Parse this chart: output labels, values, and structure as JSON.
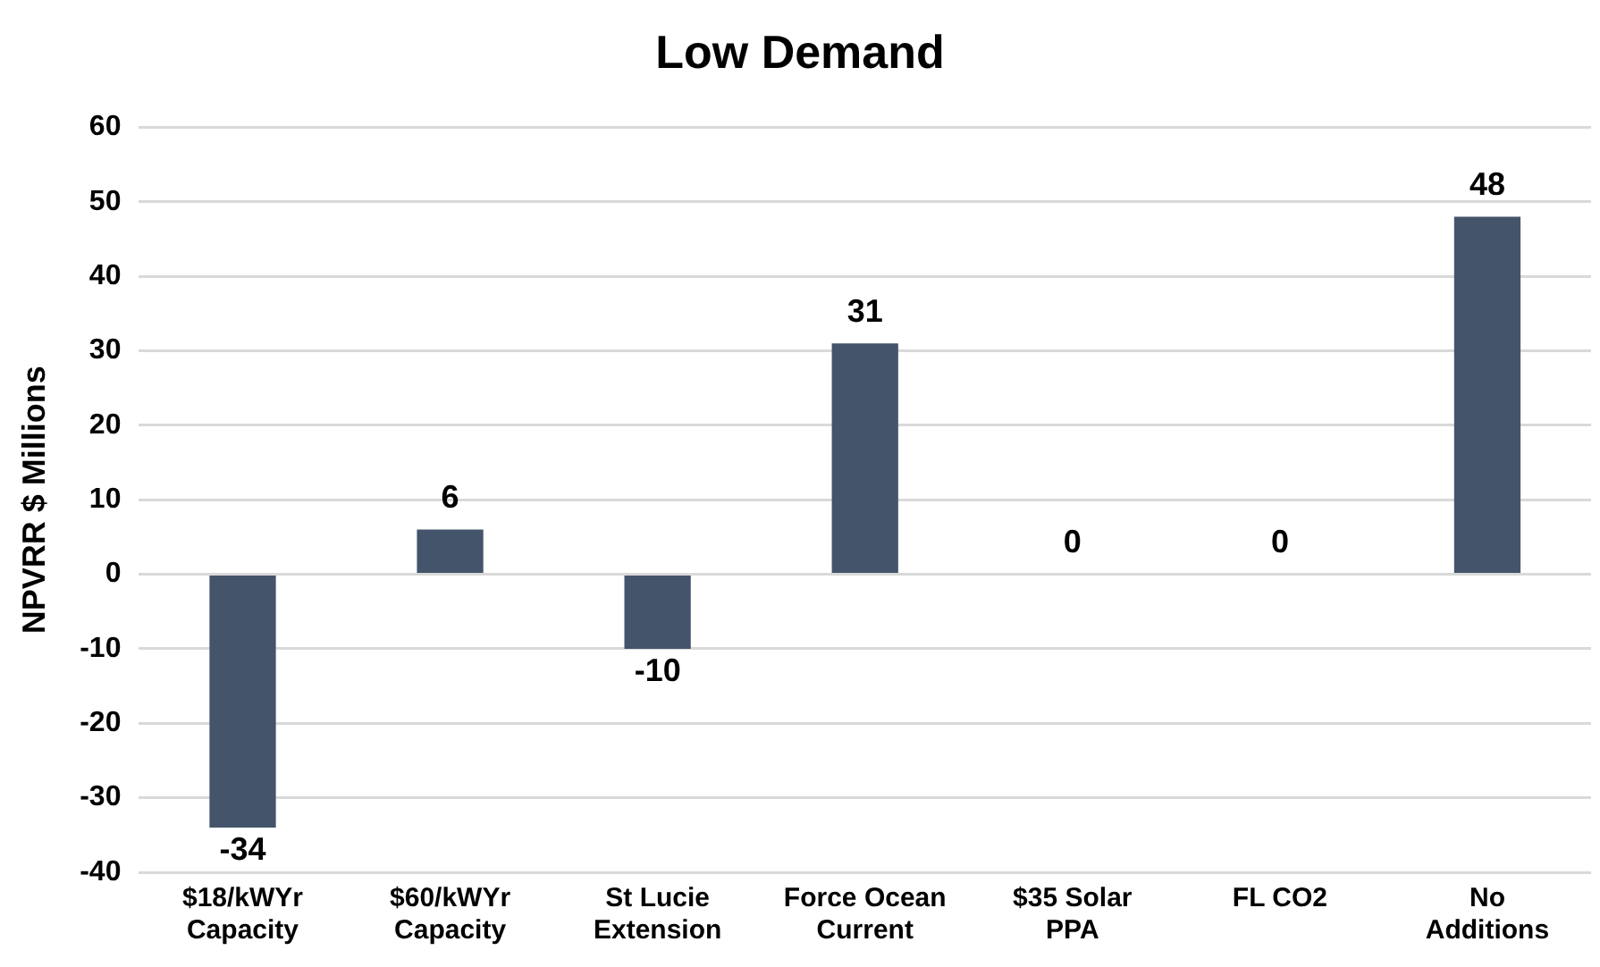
{
  "chart_data": {
    "type": "bar",
    "title": "Low Demand",
    "ylabel": "NPVRR $ Millions",
    "categories": [
      "$18/kWYr Capacity",
      "$60/kWYr Capacity",
      "St Lucie Extension",
      "Force Ocean Current",
      "$35 Solar PPA",
      "FL CO2",
      "No Additions"
    ],
    "values": [
      -34,
      6,
      -10,
      31,
      0,
      0,
      48
    ],
    "color": "#44546a",
    "ylim": [
      -40,
      60
    ],
    "yticks": [
      -40,
      -30,
      -20,
      -10,
      0,
      10,
      20,
      30,
      40,
      50,
      60
    ],
    "grid": "y",
    "data_labels": true,
    "legend": false
  }
}
